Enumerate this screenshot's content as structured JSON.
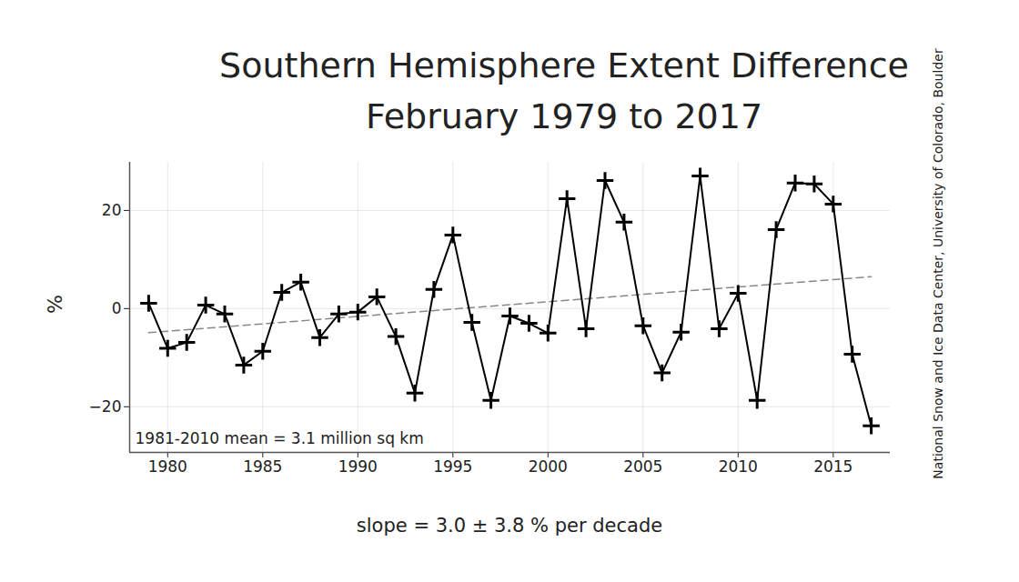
{
  "chart_data": {
    "type": "line",
    "title": "Southern Hemisphere Extent Difference",
    "subtitle": "February 1979 to 2017",
    "y_label": "%",
    "x_label": "slope = 3.0 ± 3.8 % per decade",
    "annotation": "1981-2010 mean = 3.1 million sq km",
    "source": "National Snow and Ice Data Center, University of Colorado, Boulder",
    "x": [
      1979,
      1980,
      1981,
      1982,
      1983,
      1984,
      1985,
      1986,
      1987,
      1988,
      1989,
      1990,
      1991,
      1992,
      1993,
      1994,
      1995,
      1996,
      1997,
      1998,
      1999,
      2000,
      2001,
      2002,
      2003,
      2004,
      2005,
      2006,
      2007,
      2008,
      2009,
      2010,
      2011,
      2012,
      2013,
      2014,
      2015,
      2016,
      2017
    ],
    "values": [
      1.1,
      -8.1,
      -6.9,
      0.7,
      -1.1,
      -11.5,
      -8.7,
      3.3,
      5.4,
      -5.9,
      -1.1,
      -0.7,
      2.4,
      -5.7,
      -17.2,
      3.9,
      15.0,
      -2.8,
      -18.7,
      -1.5,
      -3.0,
      -5.0,
      22.4,
      -4.1,
      26.1,
      17.6,
      -3.5,
      -13.1,
      -4.8,
      27.0,
      -4.1,
      3.1,
      -18.7,
      16.1,
      25.6,
      25.4,
      21.3,
      -9.3,
      -23.9
    ],
    "color": "#000000",
    "marker": "plus",
    "trend": {
      "x": [
        1979,
        2017
      ],
      "values": [
        -4.9,
        6.5
      ],
      "color": "#888888",
      "line_style": "dashed"
    },
    "xlim": [
      1978,
      2018
    ],
    "xticks": [
      1980,
      1985,
      1990,
      1995,
      2000,
      2005,
      2010,
      2015
    ],
    "ylim": [
      -29.3,
      29.8
    ],
    "yticks": [
      -20,
      0,
      20
    ],
    "grid": true
  }
}
